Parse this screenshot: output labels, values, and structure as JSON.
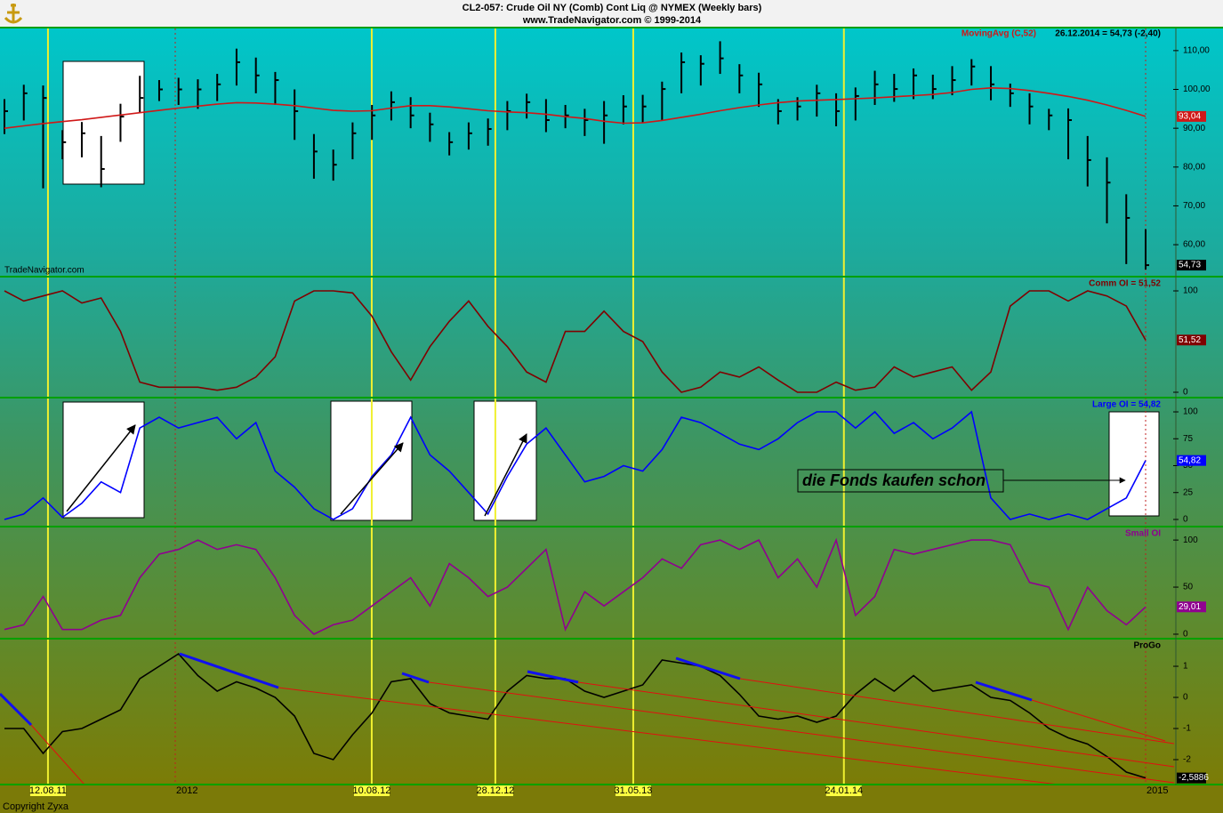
{
  "title": "CL2-057:  Crude Oil NY (Comb) Cont Liq @ NYMEX  (Weekly bars)",
  "subtitle": "www.TradeNavigator.com © 1999-2014",
  "watermark": "TradeNavigator.com",
  "copyright": "Copyright Zyxa",
  "chart_data": [
    {
      "type": "ohlc",
      "color": "#000000",
      "annotation": "26.12.2014 = 54,73 (-2,40)",
      "xlim": [
        0,
        59
      ],
      "xticks": [
        {
          "value": 8.83,
          "label": "2012"
        },
        {
          "value": 59,
          "label": "2015"
        }
      ],
      "event_dates": [
        {
          "value": 2.25,
          "label": "12.08.11"
        },
        {
          "value": 18.99,
          "label": "10.08.12"
        },
        {
          "value": 25.38,
          "label": "28.12.12"
        },
        {
          "value": 32.51,
          "label": "31.05.13"
        },
        {
          "value": 43.4,
          "label": "24.01.14"
        }
      ],
      "ylim": [
        52,
        115.7
      ],
      "yticks": [
        {
          "value": 60,
          "label": "60,00"
        },
        {
          "value": 70,
          "label": "70,00"
        },
        {
          "value": 80,
          "label": "80,00"
        },
        {
          "value": 90,
          "label": "90,00"
        },
        {
          "value": 100,
          "label": "100,00"
        },
        {
          "value": 110,
          "label": "110,00"
        }
      ],
      "high": [
        97.5,
        101.2,
        101,
        89.5,
        91.6,
        88,
        96.3,
        103.5,
        102.4,
        103,
        102.6,
        104,
        110.5,
        108.2,
        104.5,
        100,
        88.5,
        84.5,
        91.5,
        96,
        99.5,
        98,
        94,
        89,
        91.5,
        92.5,
        97,
        98.9,
        97.5,
        96,
        95,
        97,
        98.5,
        98.6,
        102,
        109.5,
        108.8,
        112.4,
        106.5,
        104.3,
        97.5,
        98,
        101.2,
        99,
        100.5,
        104.8,
        104,
        105.4,
        103.8,
        106,
        107.8,
        106,
        101.5,
        99,
        95,
        95.1,
        88,
        82.5,
        73,
        64
      ],
      "low": [
        88.5,
        92,
        74.5,
        82,
        82.5,
        74.8,
        86.5,
        94,
        97,
        96,
        95,
        97,
        101,
        99,
        96,
        87,
        77,
        76.5,
        82,
        87,
        92,
        90,
        86.5,
        83,
        84.5,
        85.5,
        89.5,
        92.5,
        89,
        90,
        88,
        86,
        91,
        91.5,
        92,
        99,
        101,
        104,
        99,
        95.5,
        91,
        92,
        93,
        90.5,
        92,
        96,
        96.8,
        97.5,
        97.5,
        98.5,
        101,
        97.2,
        95.5,
        91,
        89.5,
        82,
        75,
        65.5,
        55,
        53.6
      ],
      "values": [
        94.4,
        99,
        97.8,
        86.4,
        88.7,
        79.5,
        93,
        97.8,
        100,
        100,
        100,
        101.3,
        107,
        103.6,
        102.4,
        94.4,
        84,
        80.6,
        88.7,
        93.3,
        96.7,
        93.3,
        91,
        86.4,
        88.7,
        89.8,
        94.4,
        96.7,
        92.1,
        93.3,
        92.1,
        93.3,
        95.6,
        95.6,
        100.1,
        107,
        106.6,
        108,
        103.6,
        101.3,
        94.4,
        95.6,
        99,
        94.4,
        98.3,
        101.3,
        100.1,
        103.6,
        100.1,
        102.4,
        105.9,
        101.3,
        99,
        95.6,
        93.3,
        92.1,
        81.8,
        76,
        66.9,
        54.73
      ],
      "value_labels": [
        null,
        null,
        null,
        null,
        null,
        null,
        null,
        null,
        null,
        null,
        null,
        null,
        null,
        null,
        null,
        null,
        null,
        null,
        null,
        null,
        null,
        null,
        null,
        null,
        null,
        null,
        null,
        null,
        null,
        null,
        null,
        null,
        null,
        null,
        null,
        null,
        null,
        null,
        null,
        null,
        null,
        null,
        null,
        null,
        null,
        null,
        null,
        null,
        null,
        null,
        null,
        null,
        null,
        null,
        null,
        null,
        null,
        null,
        null,
        "54,73"
      ],
      "series": [
        {
          "name": "MovingAvg (C,52)",
          "color": "#d01818",
          "values": [
            90,
            90.6,
            91.2,
            91.7,
            92.2,
            92.8,
            93.4,
            94,
            94.6,
            95.2,
            95.7,
            96.2,
            96.6,
            96.5,
            96.2,
            95.8,
            95.2,
            94.6,
            94.4,
            94.5,
            95.2,
            95.8,
            95.8,
            95.5,
            95,
            94.5,
            94.2,
            94,
            93.6,
            93,
            92.5,
            91.8,
            91.3,
            91.4,
            92,
            92.8,
            93.6,
            94.5,
            95.3,
            96,
            96.6,
            97,
            97.2,
            97.4,
            97.6,
            97.8,
            98.1,
            98.4,
            98.7,
            99.2,
            100,
            100.4,
            100.2,
            99.7,
            99,
            98.2,
            97.2,
            96,
            94.6,
            93.04
          ],
          "value_labels": [
            null,
            null,
            null,
            null,
            null,
            null,
            null,
            null,
            null,
            null,
            null,
            null,
            null,
            null,
            null,
            null,
            null,
            null,
            null,
            null,
            null,
            null,
            null,
            null,
            null,
            null,
            null,
            null,
            null,
            null,
            null,
            null,
            null,
            null,
            null,
            null,
            null,
            null,
            null,
            null,
            null,
            null,
            null,
            null,
            null,
            null,
            null,
            null,
            null,
            null,
            null,
            null,
            null,
            null,
            null,
            null,
            null,
            null,
            null,
            "93,04"
          ]
        }
      ]
    },
    {
      "type": "line",
      "title": "Comm OI = 51,52",
      "color": "#800000",
      "ylim": [
        -4.4,
        112.3
      ],
      "yticks": [
        0,
        100
      ],
      "values": [
        100,
        90,
        95,
        100,
        88,
        93,
        60,
        10,
        5,
        5,
        5,
        2,
        5,
        15,
        35,
        90,
        100,
        100,
        98,
        75,
        40,
        12,
        45,
        70,
        90,
        65,
        45,
        20,
        10,
        60,
        60,
        80,
        60,
        50,
        20,
        0,
        5,
        20,
        15,
        25,
        12,
        0,
        0,
        10,
        2,
        5,
        25,
        15,
        20,
        25,
        2,
        20,
        85,
        100,
        100,
        90,
        100,
        95,
        85,
        51.52
      ],
      "value_labels": [
        null,
        null,
        null,
        null,
        null,
        null,
        null,
        null,
        null,
        null,
        null,
        null,
        null,
        null,
        null,
        null,
        null,
        null,
        null,
        null,
        null,
        null,
        null,
        null,
        null,
        null,
        null,
        null,
        null,
        null,
        null,
        null,
        null,
        null,
        null,
        null,
        null,
        null,
        null,
        null,
        null,
        null,
        null,
        null,
        null,
        null,
        null,
        null,
        null,
        null,
        null,
        null,
        null,
        null,
        null,
        null,
        null,
        null,
        null,
        "51,52"
      ]
    },
    {
      "type": "line",
      "title": "Large OI = 54,82",
      "color": "#0000ff",
      "annotation": "die Fonds kaufen schon",
      "ylim": [
        -5.8,
        111.6
      ],
      "yticks": [
        0,
        25,
        50,
        75,
        100
      ],
      "values": [
        0,
        5,
        20,
        2,
        15,
        35,
        25,
        85,
        95,
        85,
        90,
        95,
        75,
        90,
        45,
        30,
        10,
        0,
        10,
        40,
        60,
        95,
        60,
        45,
        25,
        5,
        40,
        70,
        85,
        60,
        35,
        40,
        50,
        45,
        65,
        95,
        90,
        80,
        70,
        65,
        75,
        90,
        100,
        100,
        85,
        100,
        80,
        90,
        75,
        85,
        100,
        20,
        0,
        5,
        0,
        5,
        0,
        10,
        20,
        54.82
      ],
      "value_labels": [
        null,
        null,
        null,
        null,
        null,
        null,
        null,
        null,
        null,
        null,
        null,
        null,
        null,
        null,
        null,
        null,
        null,
        null,
        null,
        null,
        null,
        null,
        null,
        null,
        null,
        null,
        null,
        null,
        null,
        null,
        null,
        null,
        null,
        null,
        null,
        null,
        null,
        null,
        null,
        null,
        null,
        null,
        null,
        null,
        null,
        null,
        null,
        null,
        null,
        null,
        null,
        null,
        null,
        null,
        null,
        null,
        null,
        null,
        null,
        "54,82"
      ]
    },
    {
      "type": "line",
      "title": "Small OI",
      "color": "#900090",
      "ylim": [
        -3.8,
        112.4
      ],
      "yticks": [
        0,
        50,
        100
      ],
      "values": [
        5,
        10,
        40,
        5,
        5,
        15,
        20,
        60,
        85,
        90,
        100,
        90,
        95,
        90,
        60,
        20,
        0,
        10,
        15,
        30,
        45,
        60,
        30,
        75,
        60,
        40,
        50,
        70,
        90,
        5,
        45,
        30,
        45,
        60,
        80,
        70,
        95,
        100,
        90,
        100,
        60,
        80,
        50,
        100,
        20,
        40,
        90,
        85,
        90,
        95,
        100,
        100,
        95,
        55,
        50,
        5,
        50,
        25,
        10,
        29.01
      ],
      "value_labels": [
        null,
        null,
        null,
        null,
        null,
        null,
        null,
        null,
        null,
        null,
        null,
        null,
        null,
        null,
        null,
        null,
        null,
        null,
        null,
        null,
        null,
        null,
        null,
        null,
        null,
        null,
        null,
        null,
        null,
        null,
        null,
        null,
        null,
        null,
        null,
        null,
        null,
        null,
        null,
        null,
        null,
        null,
        null,
        null,
        null,
        null,
        null,
        null,
        null,
        null,
        null,
        null,
        null,
        null,
        null,
        null,
        null,
        null,
        null,
        "29,01"
      ]
    },
    {
      "type": "line",
      "title": "ProGo",
      "color": "#000000",
      "ylim": [
        -2.8,
        1.83
      ],
      "yticks": [
        -2,
        -1,
        0,
        1
      ],
      "values": [
        -1,
        -1,
        -1.8,
        -1.1,
        -1,
        -0.7,
        -0.4,
        0.6,
        1,
        1.4,
        0.7,
        0.2,
        0.5,
        0.3,
        0,
        -0.6,
        -1.8,
        -2,
        -1.2,
        -0.5,
        0.5,
        0.6,
        -0.2,
        -0.5,
        -0.6,
        -0.7,
        0.2,
        0.7,
        0.6,
        0.6,
        0.2,
        0,
        0.2,
        0.4,
        1.2,
        1.1,
        1,
        0.7,
        0.1,
        -0.6,
        -0.7,
        -0.6,
        -0.8,
        -0.6,
        0.1,
        0.6,
        0.2,
        0.7,
        0.2,
        0.3,
        0.4,
        0,
        -0.1,
        -0.5,
        -1,
        -1.3,
        -1.5,
        -1.9,
        -2.4,
        -2.5886
      ],
      "value_labels": [
        null,
        null,
        null,
        null,
        null,
        null,
        null,
        null,
        null,
        null,
        null,
        null,
        null,
        null,
        null,
        null,
        null,
        null,
        null,
        null,
        null,
        null,
        null,
        null,
        null,
        null,
        null,
        null,
        null,
        null,
        null,
        null,
        null,
        null,
        null,
        null,
        null,
        null,
        null,
        null,
        null,
        null,
        null,
        null,
        null,
        null,
        null,
        null,
        null,
        null,
        null,
        null,
        null,
        null,
        null,
        null,
        null,
        null,
        null,
        "-2,5886"
      ]
    }
  ]
}
